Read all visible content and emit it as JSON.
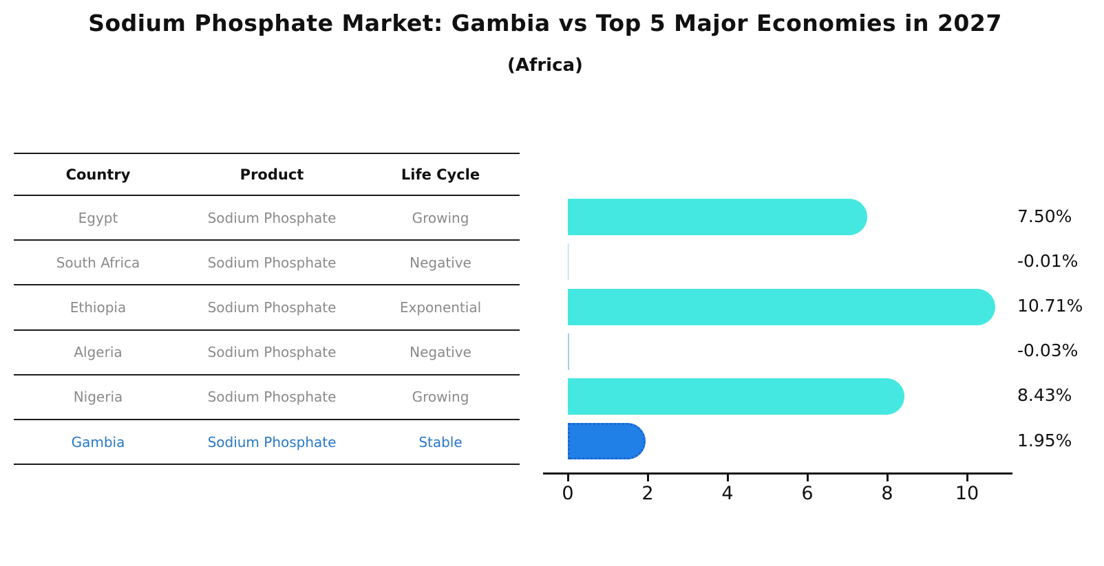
{
  "title": "Sodium Phosphate Market: Gambia vs Top 5 Major Economies in 2027",
  "subtitle": "(Africa)",
  "table": {
    "headers": [
      "Country",
      "Product",
      "Life Cycle"
    ],
    "rows": [
      {
        "country": "Egypt",
        "product": "Sodium Phosphate",
        "life_cycle": "Growing",
        "highlighted": false
      },
      {
        "country": "South Africa",
        "product": "Sodium Phosphate",
        "life_cycle": "Negative",
        "highlighted": false
      },
      {
        "country": "Ethiopia",
        "product": "Sodium Phosphate",
        "life_cycle": "Exponential",
        "highlighted": false
      },
      {
        "country": "Algeria",
        "product": "Sodium Phosphate",
        "life_cycle": "Negative",
        "highlighted": false
      },
      {
        "country": "Nigeria",
        "product": "Sodium Phosphate",
        "life_cycle": "Growing",
        "highlighted": false
      },
      {
        "country": "Gambia",
        "product": "Sodium Phosphate",
        "life_cycle": "Stable",
        "highlighted": true
      }
    ]
  },
  "chart_data": {
    "type": "bar",
    "orientation": "horizontal",
    "title": "Sodium Phosphate Market: Gambia vs Top 5 Major Economies in 2027",
    "subtitle": "(Africa)",
    "categories": [
      "Egypt",
      "South Africa",
      "Ethiopia",
      "Algeria",
      "Nigeria",
      "Gambia"
    ],
    "values": [
      7.5,
      -0.01,
      10.71,
      -0.03,
      8.43,
      1.95
    ],
    "value_labels": [
      "7.50%",
      "-0.01%",
      "10.71%",
      "-0.03%",
      "8.43%",
      "1.95%"
    ],
    "highlight_category": "Gambia",
    "x_ticks": [
      0,
      2,
      4,
      6,
      8,
      10
    ],
    "xlim": [
      -0.6,
      11.2
    ],
    "grid": false,
    "legend": false,
    "colors": {
      "bar_default": "#45e8e0",
      "bar_highlight": "#2080e8",
      "bar_highlight_border": "#1a66cc",
      "bar_negative": "#a0cfe8",
      "highlight_text": "#2878c8",
      "cell_text": "#8a8a8a",
      "axis_text": "#111111"
    }
  }
}
